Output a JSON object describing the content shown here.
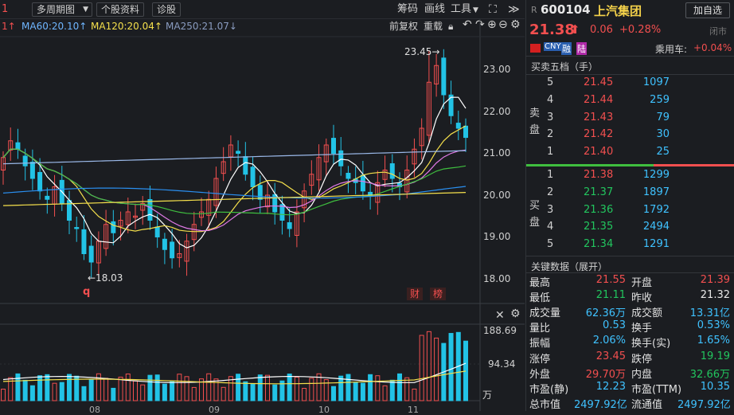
{
  "toolbar": {
    "left_marker": "1",
    "period_menu": "多周期图",
    "stock_info": "个股资料",
    "diagnose": "诊股",
    "chips": "筹码",
    "draw_line": "画线",
    "tools": "工具",
    "fq": "前复权",
    "reload": "重载"
  },
  "ma_legend": {
    "ma_partial": "1↑",
    "ma60": "MA60:20.10↑",
    "ma120": "MA120:20.04↑",
    "ma250": "MA250:21.07↓"
  },
  "colors": {
    "up": "#f24f4f",
    "down": "#22c3e6",
    "ma5": "#ffffff",
    "ma10": "#f5e04c",
    "ma20": "#e07ae6",
    "ma30": "#3fbf3f",
    "ma60": "#9ab8e8",
    "ma120": "#f5e04c",
    "ma250": "#2a8ff0"
  },
  "chart": {
    "price_ticks": [
      "23.00",
      "22.00",
      "21.00",
      "20.00",
      "19.00",
      "18.00"
    ],
    "high_label": "23.45→",
    "low_label": "←18.03",
    "q_marker": "q",
    "badge_cai": "财",
    "badge_bang": "榜",
    "vol_ticks": [
      "188.69",
      "94.34",
      "万"
    ],
    "month_ticks": [
      "08",
      "09",
      "10",
      "11"
    ]
  },
  "chart_data": [
    {
      "type": "candlestick",
      "title": "",
      "ylim": [
        17.7,
        23.55
      ],
      "max_label": 23.45,
      "min_label": 18.03,
      "x_ticks": [
        "08",
        "09",
        "10",
        "11"
      ],
      "series": [
        {
          "name": "MA60",
          "value": 20.1
        },
        {
          "name": "MA120",
          "value": 20.04
        },
        {
          "name": "MA250",
          "value": 21.07
        }
      ]
    },
    {
      "type": "bar",
      "title": "",
      "ylim": [
        0,
        188.69
      ],
      "y_unit": "万"
    }
  ],
  "quote": {
    "r": "R",
    "code": "600104",
    "name": "上汽集团",
    "add_watch": "加自选",
    "price": "21.38",
    "change": "0.06",
    "pct": "+0.28%",
    "status": "闭市",
    "tag_cny": "CNY",
    "tag_rong": "融",
    "tag_lu": "陆",
    "sector_label": "乘用车:",
    "sector_pct": "+0.04%"
  },
  "orderbook": {
    "title": "买卖五档（手）",
    "sell_label": [
      "卖",
      "盘"
    ],
    "buy_label": [
      "买",
      "盘"
    ],
    "asks": [
      {
        "level": "5",
        "price": "21.45",
        "vol": "1097"
      },
      {
        "level": "4",
        "price": "21.44",
        "vol": "259"
      },
      {
        "level": "3",
        "price": "21.43",
        "vol": "79"
      },
      {
        "level": "2",
        "price": "21.42",
        "vol": "30"
      },
      {
        "level": "1",
        "price": "21.40",
        "vol": "25"
      }
    ],
    "bids": [
      {
        "level": "1",
        "price": "21.38",
        "vol": "1299"
      },
      {
        "level": "2",
        "price": "21.37",
        "vol": "1897"
      },
      {
        "level": "3",
        "price": "21.36",
        "vol": "1792"
      },
      {
        "level": "4",
        "price": "21.35",
        "vol": "2494"
      },
      {
        "level": "5",
        "price": "21.34",
        "vol": "1291"
      }
    ]
  },
  "keydata": {
    "title": "关键数据（展开）",
    "rows": [
      {
        "l1": "最高",
        "v1": "21.55",
        "c1": "red",
        "l2": "开盘",
        "v2": "21.39",
        "c2": "red"
      },
      {
        "l1": "最低",
        "v1": "21.11",
        "c1": "grn",
        "l2": "昨收",
        "v2": "21.32",
        "c2": "wht"
      },
      {
        "l1": "成交量",
        "v1": "62.36万",
        "c1": "cyan",
        "l2": "成交额",
        "v2": "13.31亿",
        "c2": "cyan"
      },
      {
        "l1": "量比",
        "v1": "0.53",
        "c1": "cyan",
        "l2": "换手",
        "v2": "0.53%",
        "c2": "cyan"
      },
      {
        "l1": "振幅",
        "v1": "2.06%",
        "c1": "cyan",
        "l2": "换手(实)",
        "v2": "1.65%",
        "c2": "cyan"
      },
      {
        "l1": "涨停",
        "v1": "23.45",
        "c1": "red",
        "l2": "跌停",
        "v2": "19.19",
        "c2": "grn"
      },
      {
        "l1": "外盘",
        "v1": "29.70万",
        "c1": "red",
        "l2": "内盘",
        "v2": "32.66万",
        "c2": "grn"
      },
      {
        "l1": "市盈(静)",
        "v1": "12.23",
        "c1": "cyan",
        "l2": "市盈(TTM)",
        "v2": "10.35",
        "c2": "cyan"
      },
      {
        "l1": "总市值",
        "v1": "2497.92亿",
        "c1": "cyan",
        "l2": "流通值",
        "v2": "2497.92亿",
        "c2": "cyan"
      }
    ]
  }
}
